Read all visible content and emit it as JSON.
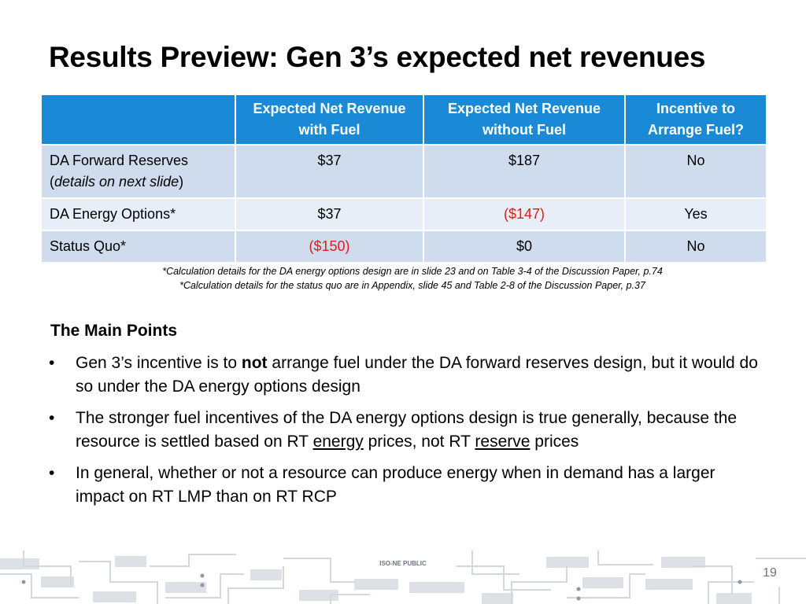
{
  "slide": {
    "title": "Results Preview: Gen 3’s expected net revenues",
    "table": {
      "headers": [
        "",
        "Expected Net Revenue with Fuel",
        "Expected Net Revenue without Fuel",
        "Incentive to Arrange Fuel?"
      ],
      "rows": [
        {
          "label": "DA Forward Reserves",
          "label_detail_open": "(",
          "label_detail": "details on next slide",
          "label_detail_close": ")",
          "with_fuel": "$37",
          "without_fuel": "$187",
          "incentive": "No"
        },
        {
          "label": "DA Energy Options*",
          "with_fuel": "$37",
          "without_fuel": "($147)",
          "incentive": "Yes"
        },
        {
          "label": "Status Quo*",
          "with_fuel": "($150)",
          "without_fuel": "$0",
          "incentive": "No"
        }
      ]
    },
    "footnotes": [
      "*Calculation details for the DA energy options design are in slide 23 and on Table 3-4 of the Discussion Paper, p.74",
      "*Calculation details for the status quo are in Appendix, slide 45 and Table 2-8 of the Discussion Paper, p.37"
    ],
    "main_points": {
      "heading": "The Main Points",
      "bullet_glyph": "•",
      "items": [
        {
          "parts": [
            "Gen 3’s incentive is to ",
            "not",
            " arrange fuel under the DA forward reserves design, but it would do so under the DA energy options design"
          ]
        },
        {
          "parts": [
            "The stronger fuel incentives of the DA energy options design is true generally, because the resource is settled based on RT ",
            "energy",
            " prices, not RT ",
            "reserve",
            " prices"
          ]
        },
        {
          "parts": [
            "In general, whether or not a resource can produce energy when in demand has a larger impact on RT LMP than on RT RCP"
          ]
        }
      ]
    },
    "footer": {
      "tag": "ISO-NE PUBLIC",
      "page_number": "19"
    },
    "colors": {
      "header_blue": "#1a8ad6",
      "row_dark": "#cfdcee",
      "row_light": "#e8eef7",
      "negative_red": "#e01b1b",
      "footer_gray": "#d3d8de"
    }
  }
}
